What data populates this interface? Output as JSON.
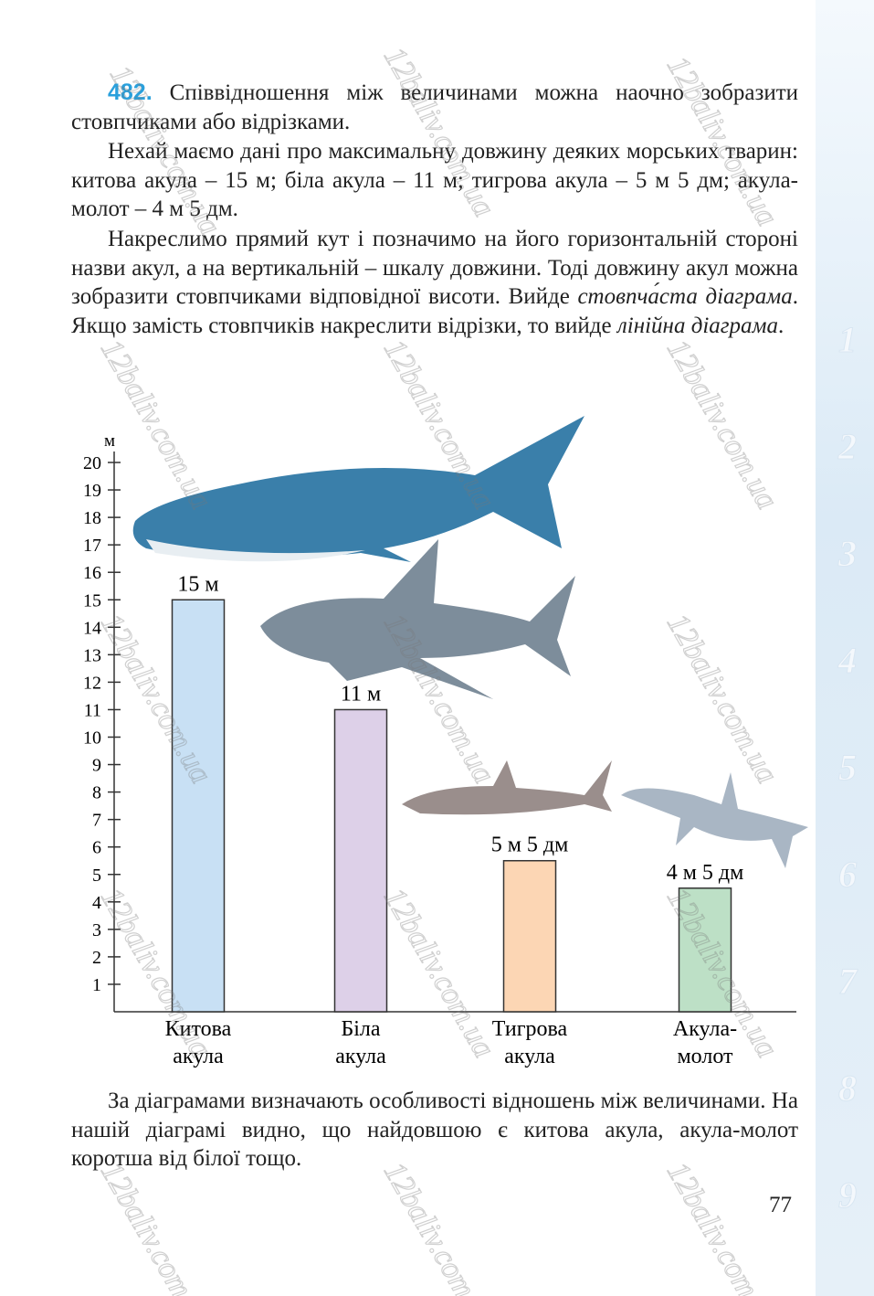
{
  "exercise_number": "482.",
  "paragraphs": [
    [
      "Співвідношення між величинами можна наочно зобразити стовпчиками або відрізками."
    ],
    [
      "Нехай маємо дані про максимальну довжину деяких морських тварин: китова акула – 15 м; біла акула – 11 м; тигрова акула – 5 м 5 дм; акула-молот – 4 м 5 дм."
    ],
    [
      "Накреслимо прямий кут і позначимо на його горизонтальній стороні назви акул, а на вертикальній – шкалу довжини. Тоді довжину акул можна зобразити стовпчиками відповідної висоти. Вийде ",
      "стовпча́ста діаграма",
      ". Якщо замість стовпчиків накреслити відрізки, то вийде ",
      "лінійна діаграма",
      "."
    ],
    [
      "За діаграмами визначають особливості відношень між величинами. На нашій діаграмі видно, що найдовшою є китова акула, акула-молот коротша від білої тощо."
    ]
  ],
  "chart_data": {
    "type": "bar",
    "y_label": "м",
    "categories": [
      [
        "Китова",
        "акула"
      ],
      [
        "Біла",
        "акула"
      ],
      [
        "Тигрова",
        "акула"
      ],
      [
        "Акула-",
        "молот"
      ]
    ],
    "values": [
      15,
      11,
      5.5,
      4.5
    ],
    "value_labels": [
      "15 м",
      "11 м",
      "5 м 5 дм",
      "4 м 5 дм"
    ],
    "colors": [
      "#c8e0f4",
      "#ddd0e8",
      "#fcd6b4",
      "#bde0c6"
    ],
    "ylim": [
      0,
      20
    ],
    "yticks": [
      1,
      2,
      3,
      4,
      5,
      6,
      7,
      8,
      9,
      10,
      11,
      12,
      13,
      14,
      15,
      16,
      17,
      18,
      19,
      20
    ]
  },
  "page_number": "77",
  "side_tabs": [
    "1",
    "2",
    "3",
    "4",
    "5",
    "6",
    "7",
    "8",
    "9"
  ],
  "watermark": "12baliv.com.ua"
}
